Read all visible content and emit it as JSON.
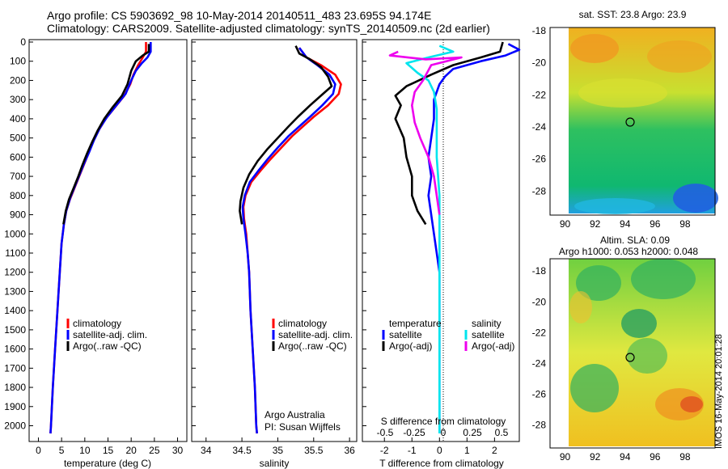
{
  "header": {
    "title_line1": "Argo profile: CS 5903692_98 10-May-2014 20140511_483 23.695S 94.174E",
    "title_line2": "Climatology: CARS2009. Satellite-adjusted climatology: synTS_20140509.nc (2d earlier)"
  },
  "colors": {
    "climatology": "#ff0000",
    "satellite": "#0000ff",
    "argo": "#000000",
    "sal_satellite": "#00e5ee",
    "sal_argo": "#ee00ee"
  },
  "chart_data": [
    {
      "type": "line",
      "id": "temperature",
      "xlabel": "temperature (deg C)",
      "ylabel": "",
      "xlim": [
        -2,
        32
      ],
      "ylim": [
        2060,
        0
      ],
      "xticks": [
        0,
        5,
        10,
        15,
        20,
        25,
        30
      ],
      "xtick_labels": [
        "0",
        "5",
        "10",
        "15",
        "20",
        "25",
        "30"
      ],
      "yticks": [
        0,
        100,
        200,
        300,
        400,
        500,
        600,
        700,
        800,
        900,
        1000,
        1100,
        1200,
        1300,
        1400,
        1500,
        1600,
        1700,
        1800,
        1900,
        2000
      ],
      "ytick_labels": [
        "0",
        "100",
        "200",
        "300",
        "400",
        "500",
        "600",
        "700",
        "800",
        "900",
        "1000",
        "1100",
        "1200",
        "1300",
        "1400",
        "1500",
        "1600",
        "1700",
        "1800",
        "1900",
        "2000"
      ],
      "legend": [
        "climatology",
        "satellite-adj. clim.",
        "Argo(..raw -QC)"
      ],
      "series": [
        {
          "name": "climatology",
          "color": "#ff0000",
          "points": [
            [
              23.2,
              0
            ],
            [
              23.2,
              50
            ],
            [
              22.5,
              80
            ],
            [
              21.5,
              120
            ],
            [
              20.5,
              170
            ],
            [
              19.8,
              220
            ],
            [
              18.5,
              280
            ],
            [
              16.5,
              340
            ],
            [
              14.5,
              400
            ],
            [
              13.0,
              460
            ],
            [
              11.8,
              520
            ],
            [
              10.8,
              580
            ],
            [
              9.8,
              640
            ],
            [
              8.8,
              700
            ],
            [
              7.8,
              760
            ],
            [
              6.8,
              820
            ],
            [
              6.0,
              880
            ],
            [
              5.5,
              950
            ],
            [
              5.0,
              1050
            ],
            [
              4.6,
              1200
            ],
            [
              4.1,
              1400
            ],
            [
              3.6,
              1600
            ],
            [
              3.1,
              1800
            ],
            [
              2.7,
              2000
            ],
            [
              2.6,
              2040
            ]
          ]
        },
        {
          "name": "satellite-adj. clim.",
          "color": "#0000ff",
          "points": [
            [
              24.2,
              0
            ],
            [
              24.2,
              50
            ],
            [
              23.5,
              80
            ],
            [
              22.3,
              110
            ],
            [
              21.0,
              150
            ],
            [
              20.0,
              200
            ],
            [
              18.8,
              270
            ],
            [
              16.8,
              330
            ],
            [
              14.8,
              390
            ],
            [
              13.2,
              450
            ],
            [
              12.0,
              510
            ],
            [
              11.0,
              570
            ],
            [
              9.9,
              630
            ],
            [
              8.9,
              690
            ],
            [
              7.9,
              750
            ],
            [
              6.9,
              810
            ],
            [
              6.0,
              880
            ],
            [
              5.5,
              950
            ],
            [
              5.0,
              1050
            ],
            [
              4.6,
              1200
            ],
            [
              4.1,
              1400
            ],
            [
              3.6,
              1600
            ],
            [
              3.1,
              1800
            ],
            [
              2.7,
              2000
            ],
            [
              2.6,
              2040
            ]
          ]
        },
        {
          "name": "Argo(..raw -QC)",
          "color": "#000000",
          "points": [
            [
              23.8,
              10
            ],
            [
              23.8,
              50
            ],
            [
              22.5,
              70
            ],
            [
              21.0,
              100
            ],
            [
              20.0,
              150
            ],
            [
              19.2,
              220
            ],
            [
              18.0,
              280
            ],
            [
              16.0,
              340
            ],
            [
              14.2,
              400
            ],
            [
              12.8,
              460
            ],
            [
              11.6,
              520
            ],
            [
              10.5,
              580
            ],
            [
              9.5,
              640
            ],
            [
              8.6,
              700
            ],
            [
              7.6,
              760
            ],
            [
              6.6,
              820
            ],
            [
              5.9,
              880
            ],
            [
              5.4,
              950
            ]
          ]
        }
      ]
    },
    {
      "type": "line",
      "id": "salinity",
      "xlabel": "salinity",
      "ylabel": "",
      "xlim": [
        33.8,
        36.1
      ],
      "ylim": [
        2060,
        0
      ],
      "xticks": [
        34,
        34.5,
        35,
        35.5,
        36
      ],
      "xtick_labels": [
        "34",
        "34.5",
        "35",
        "35.5",
        "36"
      ],
      "legend": [
        "climatology",
        "satellite-adj. clim.",
        "Argo(..raw -QC)"
      ],
      "annotation": [
        "Argo Australia",
        "PI: Susan Wijffels"
      ],
      "series": [
        {
          "name": "climatology",
          "color": "#ff0000",
          "points": [
            [
              35.3,
              30
            ],
            [
              35.4,
              80
            ],
            [
              35.6,
              120
            ],
            [
              35.8,
              170
            ],
            [
              35.88,
              220
            ],
            [
              35.85,
              270
            ],
            [
              35.7,
              330
            ],
            [
              35.5,
              390
            ],
            [
              35.35,
              440
            ],
            [
              35.2,
              490
            ],
            [
              35.05,
              550
            ],
            [
              34.9,
              610
            ],
            [
              34.76,
              670
            ],
            [
              34.63,
              730
            ],
            [
              34.55,
              800
            ],
            [
              34.52,
              860
            ],
            [
              34.53,
              920
            ],
            [
              34.56,
              1000
            ],
            [
              34.58,
              1100
            ],
            [
              34.6,
              1200
            ],
            [
              34.62,
              1400
            ],
            [
              34.65,
              1600
            ],
            [
              34.68,
              1800
            ],
            [
              34.7,
              2000
            ],
            [
              34.71,
              2040
            ]
          ]
        },
        {
          "name": "satellite-adj. clim.",
          "color": "#0000ff",
          "points": [
            [
              35.3,
              30
            ],
            [
              35.4,
              80
            ],
            [
              35.55,
              120
            ],
            [
              35.72,
              170
            ],
            [
              35.8,
              220
            ],
            [
              35.77,
              270
            ],
            [
              35.62,
              330
            ],
            [
              35.45,
              390
            ],
            [
              35.3,
              440
            ],
            [
              35.15,
              490
            ],
            [
              35.0,
              550
            ],
            [
              34.86,
              610
            ],
            [
              34.73,
              670
            ],
            [
              34.61,
              730
            ],
            [
              34.54,
              800
            ],
            [
              34.51,
              860
            ],
            [
              34.52,
              920
            ],
            [
              34.55,
              1000
            ],
            [
              34.58,
              1100
            ],
            [
              34.6,
              1200
            ],
            [
              34.62,
              1400
            ],
            [
              34.65,
              1600
            ],
            [
              34.68,
              1800
            ],
            [
              34.7,
              2000
            ],
            [
              34.71,
              2040
            ]
          ]
        },
        {
          "name": "Argo(..raw -QC)",
          "color": "#000000",
          "points": [
            [
              35.25,
              20
            ],
            [
              35.3,
              60
            ],
            [
              35.45,
              90
            ],
            [
              35.6,
              130
            ],
            [
              35.7,
              180
            ],
            [
              35.75,
              230
            ],
            [
              35.6,
              280
            ],
            [
              35.45,
              330
            ],
            [
              35.28,
              390
            ],
            [
              35.15,
              440
            ],
            [
              35.0,
              500
            ],
            [
              34.85,
              560
            ],
            [
              34.72,
              620
            ],
            [
              34.6,
              690
            ],
            [
              34.52,
              760
            ],
            [
              34.48,
              830
            ],
            [
              34.47,
              880
            ],
            [
              34.5,
              950
            ]
          ]
        }
      ]
    },
    {
      "type": "line",
      "id": "difference",
      "xlabel": "T difference from climatology",
      "xlabel_top": "S difference from climatology",
      "xlim": [
        -2.8,
        2.9
      ],
      "ylim": [
        2060,
        0
      ],
      "xticks": [
        -2,
        -1,
        0,
        1,
        2
      ],
      "xtick_labels": [
        "-2",
        "-1",
        "0",
        "1",
        "2"
      ],
      "xticks_top": [
        -0.5,
        -0.25,
        0,
        0.25,
        0.5
      ],
      "xtick_top_labels": [
        "-0.5",
        "-0.25",
        "0",
        "0.25",
        "0.5"
      ],
      "legend_titles": [
        "temperature",
        "salinity"
      ],
      "legend": [
        "satellite",
        "Argo(-adj)",
        "satellite",
        "Argo(-adj)"
      ],
      "series": [
        {
          "name": "satellite",
          "color": "#0000ff",
          "points": [
            [
              2.5,
              10
            ],
            [
              2.9,
              40
            ],
            [
              2.4,
              70
            ],
            [
              1.5,
              100
            ],
            [
              0.5,
              140
            ],
            [
              0.2,
              180
            ],
            [
              0.0,
              220
            ],
            [
              -0.2,
              300
            ],
            [
              -0.2,
              400
            ],
            [
              -0.3,
              500
            ],
            [
              -0.4,
              600
            ],
            [
              -0.3,
              700
            ],
            [
              -0.4,
              800
            ],
            [
              -0.3,
              900
            ],
            [
              -0.2,
              1000
            ],
            [
              -0.1,
              1100
            ],
            [
              0.0,
              1200
            ],
            [
              0.0,
              1400
            ],
            [
              0.0,
              1600
            ],
            [
              0.0,
              1800
            ],
            [
              0.0,
              2040
            ]
          ]
        },
        {
          "name": "Argo(-adj)",
          "color": "#000000",
          "points": [
            [
              2.3,
              0
            ],
            [
              2.2,
              50
            ],
            [
              1.5,
              80
            ],
            [
              0.5,
              120
            ],
            [
              -0.3,
              170
            ],
            [
              -1.2,
              230
            ],
            [
              -1.6,
              280
            ],
            [
              -1.4,
              330
            ],
            [
              -1.6,
              400
            ],
            [
              -1.3,
              500
            ],
            [
              -1.2,
              600
            ],
            [
              -1.0,
              700
            ],
            [
              -1.0,
              800
            ],
            [
              -0.8,
              880
            ],
            [
              -0.5,
              950
            ]
          ]
        },
        {
          "name": "satellite",
          "color": "#00e5ee",
          "points": [
            [
              0.0,
              20
            ],
            [
              0.5,
              50
            ],
            [
              -0.4,
              80
            ],
            [
              -1.2,
              110
            ],
            [
              -0.8,
              160
            ],
            [
              -0.4,
              200
            ],
            [
              -0.2,
              260
            ],
            [
              -0.1,
              350
            ],
            [
              -0.1,
              450
            ],
            [
              -0.1,
              600
            ],
            [
              0.0,
              800
            ],
            [
              0.0,
              1000
            ],
            [
              0.0,
              1400
            ],
            [
              0.0,
              2040
            ]
          ]
        },
        {
          "name": "Argo(-adj)",
          "color": "#ee00ee",
          "points": [
            [
              -1.5,
              50
            ],
            [
              -1.8,
              70
            ],
            [
              -0.5,
              90
            ],
            [
              0.8,
              80
            ],
            [
              -0.3,
              120
            ],
            [
              -0.6,
              200
            ],
            [
              -0.9,
              260
            ],
            [
              -1.0,
              330
            ],
            [
              -0.9,
              420
            ],
            [
              -0.7,
              500
            ],
            [
              -0.4,
              600
            ],
            [
              -0.2,
              700
            ],
            [
              -0.1,
              800
            ],
            [
              0.0,
              900
            ]
          ]
        }
      ]
    },
    {
      "type": "heatmap",
      "id": "sst-map",
      "title": "sat. SST: 23.8  Argo: 23.9",
      "xlim": [
        89,
        100
      ],
      "ylim": [
        -29.5,
        -17.8
      ],
      "xticks": [
        90,
        92,
        94,
        96,
        98
      ],
      "xtick_labels": [
        "90",
        "92",
        "94",
        "96",
        "98"
      ],
      "yticks": [
        -18,
        -20,
        -22,
        -24,
        -26,
        -28
      ],
      "ytick_labels": [
        "-18",
        "-20",
        "-22",
        "-24",
        "-26",
        "-28"
      ],
      "marker": [
        94.17,
        -23.7
      ],
      "grid": false
    },
    {
      "type": "heatmap",
      "id": "sla-map",
      "title": "Altim. SLA: 0.09",
      "subtitle": "Argo h1000: 0.053  h2000: 0.048",
      "xlim": [
        89,
        100
      ],
      "ylim": [
        -29.5,
        -17.2
      ],
      "xticks": [
        90,
        92,
        94,
        96,
        98
      ],
      "xtick_labels": [
        "90",
        "92",
        "94",
        "96",
        "98"
      ],
      "yticks": [
        -18,
        -20,
        -22,
        -24,
        -26,
        -28
      ],
      "ytick_labels": [
        "-18",
        "-20",
        "-22",
        "-24",
        "-26",
        "-28"
      ],
      "marker": [
        94.17,
        -23.7
      ],
      "grid": false
    }
  ],
  "footer": {
    "stamp": "IMOS 16-May-2014 20:01:28"
  }
}
